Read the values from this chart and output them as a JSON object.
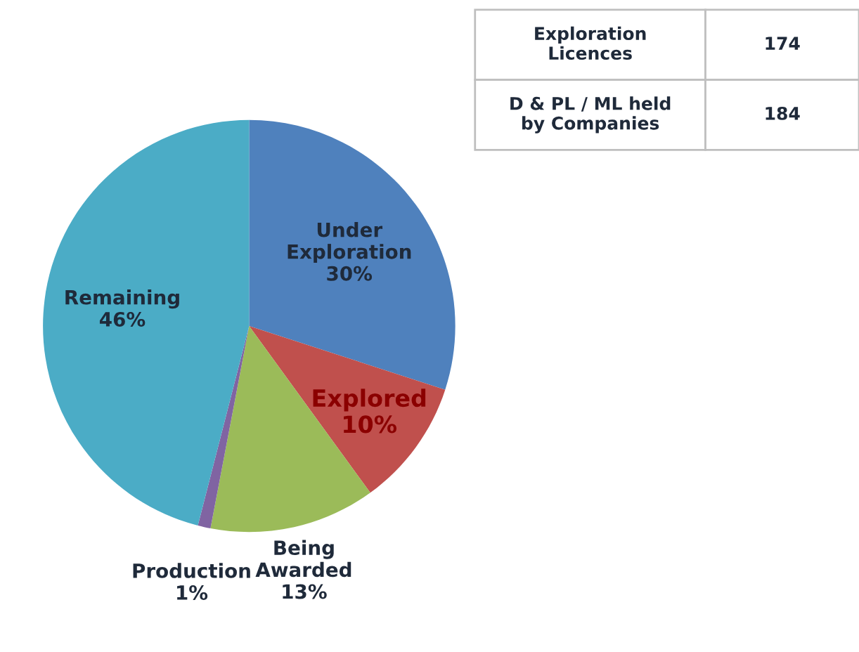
{
  "chart_data": {
    "type": "pie",
    "categories": [
      "Under\nExploration",
      "Explored",
      "Being\nAwarded",
      "Production",
      "Remaining"
    ],
    "values": [
      30,
      10,
      13,
      1,
      46
    ],
    "colors": [
      "#4f81bd",
      "#c0504d",
      "#9bbb59",
      "#8064a2",
      "#4bacc6"
    ],
    "value_labels": [
      "30%",
      "10%",
      "13%",
      "1%",
      "46%"
    ],
    "annotations": [
      "Exploration\nLicences",
      "174",
      "D & PL / ML held\nby Companies",
      "184"
    ]
  }
}
